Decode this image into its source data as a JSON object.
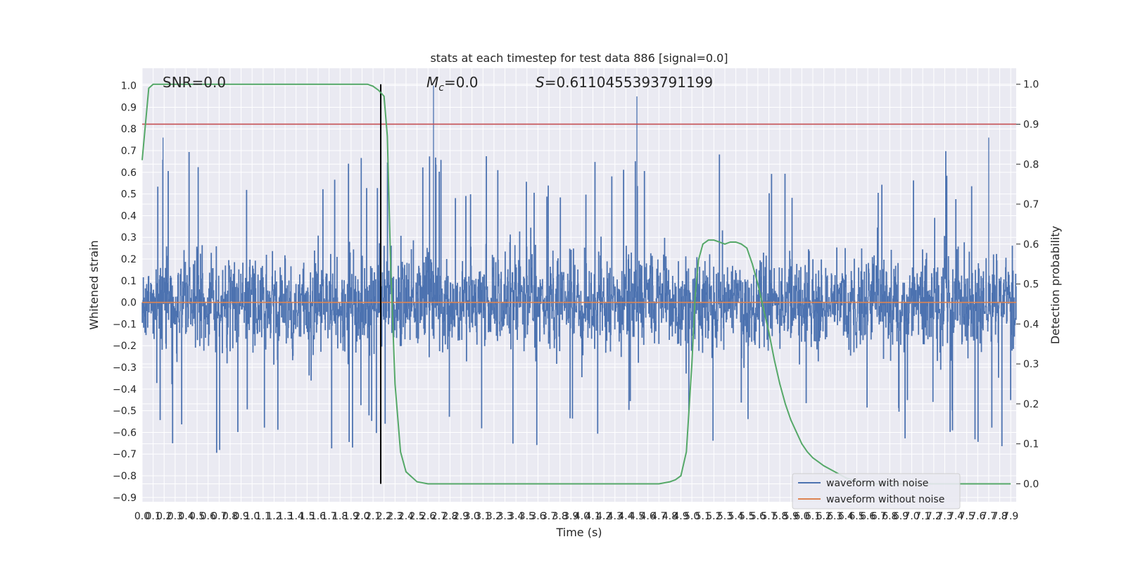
{
  "chart_data": {
    "type": "line",
    "title": "stats at each timestep for test data 886 [signal=0.0]",
    "xlabel": "Time (s)",
    "ylabel": "Whitened strain",
    "ylabel_right": "Detection probability",
    "xlim": [
      0.0,
      7.95
    ],
    "ylim": [
      -0.92,
      1.08
    ],
    "ylim_right": [
      -0.045,
      1.04
    ],
    "xticks": [
      "0.0",
      "0.1",
      "0.2",
      "0.3",
      "0.4",
      "0.5",
      "0.6",
      "0.7",
      "0.8",
      "0.9",
      "1.0",
      "1.1",
      "1.2",
      "1.3",
      "1.4",
      "1.5",
      "1.6",
      "1.7",
      "1.8",
      "1.9",
      "2.0",
      "2.1",
      "2.2",
      "2.3",
      "2.4",
      "2.5",
      "2.6",
      "2.7",
      "2.8",
      "2.9",
      "3.0",
      "3.1",
      "3.2",
      "3.3",
      "3.4",
      "3.5",
      "3.6",
      "3.7",
      "3.8",
      "3.9",
      "4.0",
      "4.1",
      "4.2",
      "4.3",
      "4.4",
      "4.5",
      "4.6",
      "4.7",
      "4.8",
      "4.9",
      "5.0",
      "5.1",
      "5.2",
      "5.3",
      "5.4",
      "5.5",
      "5.6",
      "5.7",
      "5.8",
      "5.9",
      "6.0",
      "6.1",
      "6.2",
      "6.3",
      "6.4",
      "6.5",
      "6.6",
      "6.7",
      "6.8",
      "6.9",
      "7.0",
      "7.1",
      "7.2",
      "7.3",
      "7.4",
      "7.5",
      "7.6",
      "7.7",
      "7.8",
      "7.9"
    ],
    "yticks_left": [
      "1.0",
      "0.9",
      "0.8",
      "0.7",
      "0.6",
      "0.5",
      "0.4",
      "0.3",
      "0.2",
      "0.1",
      "0.0",
      "−0.1",
      "−0.2",
      "−0.3",
      "−0.4",
      "−0.5",
      "−0.6",
      "−0.7",
      "−0.8",
      "−0.9"
    ],
    "yticks_right": [
      "1.0",
      "0.9",
      "0.8",
      "0.7",
      "0.6",
      "0.5",
      "0.4",
      "0.3",
      "0.2",
      "0.1",
      "0.0"
    ],
    "annotations": {
      "snr": "SNR=0.0",
      "mc_prefix": "M",
      "mc_sub": "c",
      "mc_value": "=0.0",
      "s_prefix": "S",
      "s_value": "=0.6110455393791199"
    },
    "threshold_right": 0.9,
    "vline_x": 2.17,
    "noise_envelope": {
      "typical_min": -0.6,
      "typical_max": 0.6,
      "peaks": [
        [
          2.65,
          1.0
        ],
        [
          4.5,
          0.95
        ],
        [
          0.19,
          0.76
        ],
        [
          7.7,
          0.76
        ]
      ]
    },
    "series": [
      {
        "name": "waveform with noise",
        "color": "#4c72b0",
        "description_values": "dense noise, approx range -0.8 to 1.0"
      },
      {
        "name": "waveform without noise",
        "color": "#dd8452",
        "values_constant": 0.0
      },
      {
        "color": "#55a868",
        "axis": "right",
        "x": [
          0.0,
          0.06,
          0.1,
          0.2,
          0.5,
          1.0,
          1.5,
          2.0,
          2.05,
          2.1,
          2.15,
          2.2,
          2.23,
          2.26,
          2.3,
          2.35,
          2.4,
          2.5,
          2.6,
          2.7,
          3.0,
          3.5,
          4.0,
          4.5,
          4.7,
          4.8,
          4.85,
          4.9,
          4.95,
          5.0,
          5.03,
          5.06,
          5.1,
          5.15,
          5.2,
          5.25,
          5.3,
          5.35,
          5.4,
          5.45,
          5.5,
          5.55,
          5.6,
          5.65,
          5.7,
          5.75,
          5.8,
          5.85,
          5.9,
          5.95,
          6.0,
          6.05,
          6.1,
          6.15,
          6.2,
          6.3,
          6.4,
          6.5,
          6.6,
          6.7,
          6.8,
          6.9,
          7.0,
          7.2,
          7.5,
          7.9
        ],
        "y": [
          0.81,
          0.99,
          1.0,
          1.0,
          1.0,
          1.0,
          1.0,
          1.0,
          1.0,
          0.995,
          0.985,
          0.97,
          0.87,
          0.55,
          0.25,
          0.08,
          0.03,
          0.005,
          0.0,
          0.0,
          0.0,
          0.0,
          0.0,
          0.0,
          0.0,
          0.005,
          0.01,
          0.02,
          0.08,
          0.3,
          0.47,
          0.56,
          0.6,
          0.61,
          0.61,
          0.605,
          0.6,
          0.605,
          0.605,
          0.6,
          0.59,
          0.55,
          0.5,
          0.44,
          0.38,
          0.31,
          0.25,
          0.2,
          0.16,
          0.13,
          0.1,
          0.08,
          0.065,
          0.055,
          0.045,
          0.03,
          0.015,
          0.005,
          0.0,
          0.0,
          0.0,
          0.0,
          0.0,
          0.0,
          0.0,
          0.0
        ]
      }
    ],
    "threshold_color": "#c44e52",
    "grid": true,
    "legend_position": "lower right"
  }
}
